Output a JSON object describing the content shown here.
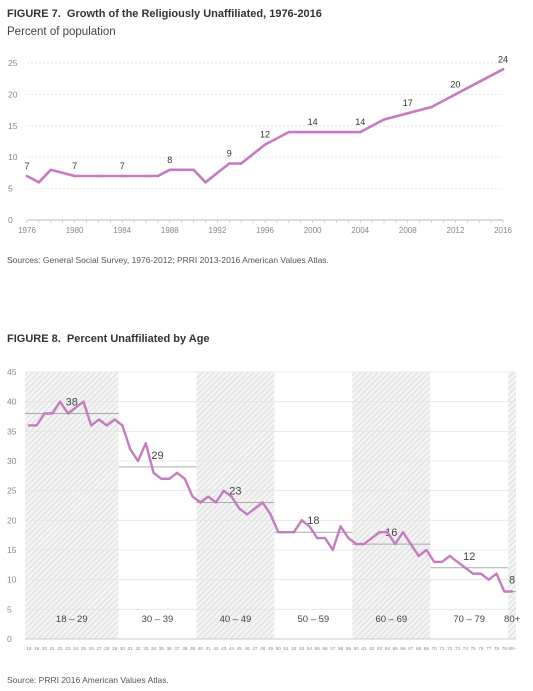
{
  "chart_data": [
    {
      "type": "line",
      "title_prefix": "FIGURE 7.",
      "title": "Growth of the Religiously Unaffiliated, 1976-2016",
      "subtitle": "Percent of population",
      "source": "Sources: General Social Survey, 1976-2012; PRRI 2013-2016 American Values Atlas.",
      "line_color": "#c57bbf",
      "ylim": [
        0,
        25
      ],
      "yticks": [
        0,
        5,
        10,
        15,
        20,
        25
      ],
      "xlim": [
        1976,
        2016
      ],
      "xticks": [
        1976,
        1980,
        1984,
        1988,
        1992,
        1996,
        2000,
        2004,
        2008,
        2012,
        2016
      ],
      "grid": true,
      "x": [
        1976,
        1977,
        1978,
        1980,
        1982,
        1984,
        1986,
        1987,
        1988,
        1989,
        1990,
        1991,
        1993,
        1994,
        1996,
        1998,
        2000,
        2002,
        2004,
        2006,
        2008,
        2010,
        2012,
        2014,
        2016
      ],
      "y": [
        7,
        6,
        8,
        7,
        7,
        7,
        7,
        7,
        8,
        8,
        8,
        6,
        9,
        9,
        12,
        14,
        14,
        14,
        14,
        16,
        17,
        18,
        20,
        22,
        24
      ],
      "data_labels": [
        {
          "x": 1976,
          "y": 7,
          "label": "7"
        },
        {
          "x": 1980,
          "y": 7,
          "label": "7"
        },
        {
          "x": 1984,
          "y": 7,
          "label": "7"
        },
        {
          "x": 1988,
          "y": 8,
          "label": "8"
        },
        {
          "x": 1993,
          "y": 9,
          "label": "9"
        },
        {
          "x": 1996,
          "y": 12,
          "label": "12"
        },
        {
          "x": 2000,
          "y": 14,
          "label": "14"
        },
        {
          "x": 2004,
          "y": 14,
          "label": "14"
        },
        {
          "x": 2008,
          "y": 17,
          "label": "17"
        },
        {
          "x": 2012,
          "y": 20,
          "label": "20"
        },
        {
          "x": 2016,
          "y": 24,
          "label": "24"
        }
      ]
    },
    {
      "type": "line",
      "title_prefix": "FIGURE 8.",
      "title": "Percent Unaffiliated by Age",
      "source": "Source: PRRI 2016 American Values Atlas.",
      "line_color": "#c57bbf",
      "mean_line_color": "#aaaaaa",
      "ylim": [
        0,
        45
      ],
      "yticks": [
        0,
        5,
        10,
        15,
        20,
        25,
        30,
        35,
        40,
        45
      ],
      "x_labels": [
        "18",
        "19",
        "20",
        "21",
        "22",
        "23",
        "24",
        "25",
        "26",
        "27",
        "28",
        "29",
        "30",
        "31",
        "32",
        "33",
        "34",
        "35",
        "36",
        "37",
        "38",
        "39",
        "40",
        "41",
        "42",
        "43",
        "44",
        "45",
        "46",
        "47",
        "48",
        "49",
        "50",
        "51",
        "52",
        "53",
        "54",
        "55",
        "56",
        "57",
        "58",
        "59",
        "60",
        "61",
        "62",
        "63",
        "64",
        "65",
        "66",
        "67",
        "68",
        "69",
        "70",
        "71",
        "72",
        "73",
        "74",
        "75",
        "76",
        "77",
        "78",
        "79",
        "80+"
      ],
      "ages": [
        18,
        19,
        20,
        21,
        22,
        23,
        24,
        25,
        26,
        27,
        28,
        29,
        30,
        31,
        32,
        33,
        34,
        35,
        36,
        37,
        38,
        39,
        40,
        41,
        42,
        43,
        44,
        45,
        46,
        47,
        48,
        49,
        50,
        51,
        52,
        53,
        54,
        55,
        56,
        57,
        58,
        59,
        60,
        61,
        62,
        63,
        64,
        65,
        66,
        67,
        68,
        69,
        70,
        71,
        72,
        73,
        74,
        75,
        76,
        77,
        78,
        79,
        80
      ],
      "values": [
        36,
        36,
        38,
        38,
        40,
        38,
        39,
        40,
        36,
        37,
        36,
        37,
        36,
        32,
        30,
        33,
        28,
        27,
        27,
        28,
        27,
        24,
        23,
        24,
        23,
        25,
        24,
        22,
        21,
        22,
        23,
        21,
        18,
        18,
        18,
        20,
        19,
        17,
        17,
        15,
        19,
        17,
        16,
        16,
        17,
        18,
        18,
        16,
        18,
        16,
        14,
        15,
        13,
        13,
        14,
        13,
        12,
        11,
        11,
        10,
        11,
        8,
        8
      ],
      "groups": [
        {
          "label": "18 – 29",
          "start": 18,
          "end": 29,
          "mean": 38,
          "shaded": true
        },
        {
          "label": "30 – 39",
          "start": 30,
          "end": 39,
          "mean": 29,
          "shaded": false
        },
        {
          "label": "40 – 49",
          "start": 40,
          "end": 49,
          "mean": 23,
          "shaded": true
        },
        {
          "label": "50 – 59",
          "start": 50,
          "end": 59,
          "mean": 18,
          "shaded": false
        },
        {
          "label": "60 – 69",
          "start": 60,
          "end": 69,
          "mean": 16,
          "shaded": true
        },
        {
          "label": "70 – 79",
          "start": 70,
          "end": 79,
          "mean": 12,
          "shaded": false
        },
        {
          "label": "80+",
          "start": 80,
          "end": 80,
          "mean": 8,
          "shaded": true
        }
      ]
    }
  ]
}
